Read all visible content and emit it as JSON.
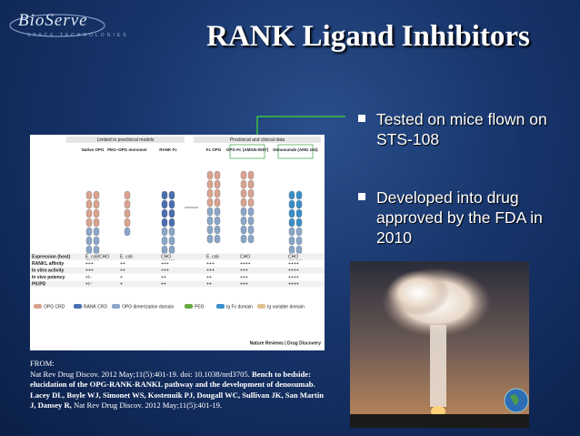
{
  "logo": {
    "name": "BioServe",
    "tagline": "SPACE TECHNOLOGIES"
  },
  "title": "RANK Ligand Inhibitors",
  "bullets": [
    "Tested on mice flown on STS-108",
    "Developed into drug approved by the FDA in 2010"
  ],
  "figure": {
    "groups": [
      "Limited to preclinical models",
      "Preclinical and clinical data"
    ],
    "molecules": [
      "Native OPG",
      "PEG–OPG monomer",
      "RANK Fc",
      "Fc OPG",
      "OPG-Fc (AMGN-0007)",
      "Denosumab (AMG 162)"
    ],
    "rows": [
      {
        "label": "Expression (host)",
        "values": [
          "E. coli/CHO",
          "E. coli",
          "CHO",
          "E. coli",
          "CHO",
          "CHO"
        ]
      },
      {
        "label": "RANKL affinity",
        "values": [
          "+++",
          "++",
          "+++",
          "+++",
          "++++",
          "++++"
        ]
      },
      {
        "label": "In vitro activity",
        "values": [
          "+++",
          "++",
          "+++",
          "+++",
          "+++",
          "++++"
        ]
      },
      {
        "label": "In vivo potency",
        "values": [
          "+/−",
          "+",
          "++",
          "++",
          "+++",
          "++++"
        ]
      },
      {
        "label": "PK/PD",
        "values": [
          "+/−",
          "+",
          "++",
          "++",
          "+++",
          "++++"
        ]
      }
    ],
    "legend": [
      "OPG CRD",
      "RANK CRD",
      "OPG dimerization domain",
      "PEG",
      "Ig Fc domain",
      "Ig variable domain"
    ],
    "credit": "Nature Reviews | Drug Discovery"
  },
  "citation": {
    "prefix": "FROM:",
    "source": "Nat Rev Drug Discov. 2012 May;11(5):401-19. doi: 10.1038/nrd3705.",
    "title": "Bench to bedside: elucidation of the OPG-RANK-RANKL pathway and the development of denosumab. Lacey DL, Boyle WJ, Simonet WS, Kostenuik PJ, Dougall WC, Sullivan JK, San Martin J, Dansey R,",
    "journal": "Nat Rev Drug Discov. 2012 May;11(5):401-19."
  }
}
